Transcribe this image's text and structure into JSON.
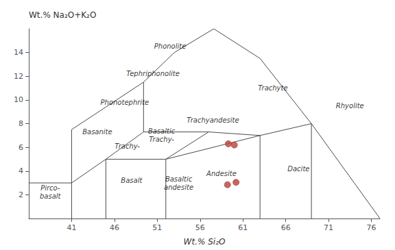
{
  "chart_data": {
    "type": "scatter",
    "xlabel": "Wt.% Si₂O",
    "ylabel": "Wt.% Na₂O+K₂O",
    "xlim": [
      36,
      77
    ],
    "ylim": [
      0,
      16
    ],
    "xticks": [
      41,
      46,
      51,
      56,
      61,
      66,
      71,
      76
    ],
    "yticks": [
      2,
      4,
      6,
      8,
      10,
      12,
      14
    ],
    "grid": false,
    "points": {
      "x": [
        59.3,
        60.0,
        59.2,
        60.2
      ],
      "y": [
        6.3,
        6.2,
        2.85,
        3.05
      ],
      "color": "#b5413a",
      "marker": "circle"
    },
    "boundaries": {
      "color": "#4a4a4a",
      "segments": [
        [
          [
            41,
            0
          ],
          [
            41,
            3
          ]
        ],
        [
          [
            36,
            3
          ],
          [
            41,
            3
          ]
        ],
        [
          [
            45,
            0
          ],
          [
            45,
            5
          ]
        ],
        [
          [
            52,
            0
          ],
          [
            52,
            5
          ]
        ],
        [
          [
            63,
            0
          ],
          [
            63,
            7
          ]
        ],
        [
          [
            69,
            0
          ],
          [
            69,
            8
          ]
        ],
        [
          [
            41,
            3
          ],
          [
            45,
            5
          ]
        ],
        [
          [
            45,
            5
          ],
          [
            52,
            5
          ]
        ],
        [
          [
            52,
            5
          ],
          [
            63,
            7
          ]
        ],
        [
          [
            63,
            7
          ],
          [
            69,
            8
          ]
        ],
        [
          [
            69,
            8
          ],
          [
            77,
            0
          ]
        ],
        [
          [
            41,
            3
          ],
          [
            41,
            7.5
          ]
        ],
        [
          [
            41,
            7.5
          ],
          [
            45,
            9.4
          ]
        ],
        [
          [
            45,
            9.4
          ],
          [
            49.4,
            11.5
          ]
        ],
        [
          [
            49.4,
            11.5
          ],
          [
            53,
            14
          ]
        ],
        [
          [
            53,
            14
          ],
          [
            57.6,
            16
          ]
        ],
        [
          [
            57.6,
            16
          ],
          [
            63,
            13.5
          ]
        ],
        [
          [
            63,
            13.5
          ],
          [
            69,
            8
          ]
        ],
        [
          [
            49.4,
            7.3
          ],
          [
            49.4,
            11.5
          ]
        ],
        [
          [
            45,
            5
          ],
          [
            49.4,
            7.3
          ]
        ],
        [
          [
            49.4,
            7.3
          ],
          [
            57,
            7.3
          ]
        ],
        [
          [
            52,
            5
          ],
          [
            57,
            7.3
          ]
        ],
        [
          [
            57,
            7.3
          ],
          [
            63,
            7
          ]
        ]
      ]
    },
    "annotations": [
      {
        "text": "Phonolite",
        "x": 52.5,
        "y": 14.5
      },
      {
        "text": "Tephriphonolite",
        "x": 50.5,
        "y": 12.2
      },
      {
        "text": "Phonotephrite",
        "x": 47.2,
        "y": 9.8
      },
      {
        "text": "Basanite",
        "x": 44.0,
        "y": 7.3
      },
      {
        "text": "Basaltic\nTrachy-",
        "x": 51.5,
        "y": 7.0
      },
      {
        "text": "Trachy-",
        "x": 47.5,
        "y": 6.1
      },
      {
        "text": "Trachyandesite",
        "x": 57.5,
        "y": 8.3
      },
      {
        "text": "Trachyte",
        "x": 64.5,
        "y": 11.0
      },
      {
        "text": "Rhyolite",
        "x": 73.5,
        "y": 9.5
      },
      {
        "text": "Dacite",
        "x": 67.5,
        "y": 4.2
      },
      {
        "text": "Andesite",
        "x": 58.5,
        "y": 3.8
      },
      {
        "text": "Basalt",
        "x": 48.0,
        "y": 3.2
      },
      {
        "text": "Basaltic\nandesite",
        "x": 53.5,
        "y": 3.0
      },
      {
        "text": "Pirco-\nbasalt",
        "x": 38.5,
        "y": 2.2
      }
    ]
  }
}
